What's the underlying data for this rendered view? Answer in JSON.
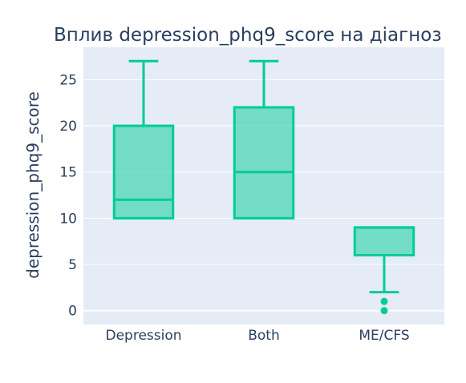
{
  "chart_data": {
    "type": "box",
    "title": "Вплив depression_phq9_score на діагноз",
    "xlabel": "",
    "ylabel": "depression_phq9_score",
    "categories": [
      "Depression",
      "Both",
      "ME/CFS"
    ],
    "ylim": [
      -1.5,
      28.5
    ],
    "yticks": [
      0,
      5,
      10,
      15,
      20,
      25
    ],
    "grid": true,
    "legend": false,
    "colors": {
      "plot_bg": "#e5ecf6",
      "grid": "#ffffff",
      "box_line": "#00cc96",
      "box_fill": "rgba(0,204,150,0.5)",
      "text": "#2a3f5f"
    },
    "boxes": [
      {
        "category": "Depression",
        "min": 10,
        "q1": 10,
        "median": 12,
        "q3": 20,
        "max": 27,
        "outliers": []
      },
      {
        "category": "Both",
        "min": 10,
        "q1": 10,
        "median": 15,
        "q3": 22,
        "max": 27,
        "outliers": []
      },
      {
        "category": "ME/CFS",
        "min": 2,
        "q1": 6,
        "median": 9,
        "q3": 9,
        "max": 9,
        "outliers": [
          0,
          1
        ]
      }
    ]
  }
}
